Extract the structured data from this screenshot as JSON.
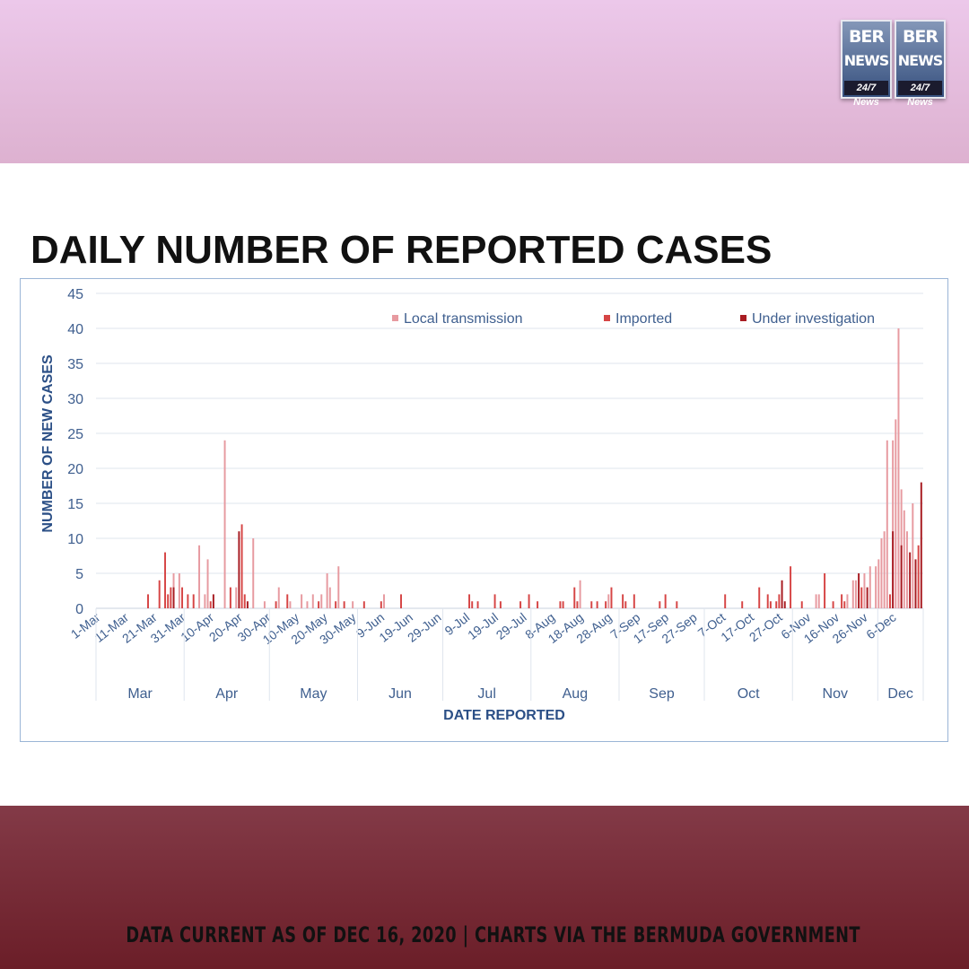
{
  "header": {
    "logo": {
      "tiles": [
        {
          "line1": "BER",
          "line2": "NEWS",
          "line3": "24/7 News"
        },
        {
          "line1": "BER",
          "line2": "NEWS",
          "line3": "24/7 News"
        }
      ]
    }
  },
  "footer": {
    "text": "DATA CURRENT AS OF DEC 16, 2020 | CHARTS VIA THE BERMUDA GOVERNMENT"
  },
  "colors": {
    "top_band": "#e5bddd",
    "bottom_band": "#7a2c37",
    "local": "#e79aa0",
    "imported": "#d64545",
    "under_investigation": "#a81c22",
    "axis_text": "#3f5f8f",
    "gridline": "#dfe5ee"
  },
  "chart_data": {
    "type": "bar",
    "title": "DAILY NUMBER OF REPORTED CASES",
    "xlabel": "DATE REPORTED",
    "ylabel": "NUMBER OF NEW CASES",
    "ylim": [
      0,
      45
    ],
    "yticks": [
      0,
      5,
      10,
      15,
      20,
      25,
      30,
      35,
      40,
      45
    ],
    "grid": true,
    "legend_position": "top-right",
    "x_tick_labels": [
      "1-Mar",
      "11-Mar",
      "21-Mar",
      "31-Mar",
      "10-Apr",
      "20-Apr",
      "30-Apr",
      "10-May",
      "20-May",
      "30-May",
      "9-Jun",
      "19-Jun",
      "29-Jun",
      "9-Jul",
      "19-Jul",
      "29-Jul",
      "8-Aug",
      "18-Aug",
      "28-Aug",
      "7-Sep",
      "17-Sep",
      "27-Sep",
      "7-Oct",
      "17-Oct",
      "27-Oct",
      "6-Nov",
      "16-Nov",
      "26-Nov",
      "6-Dec"
    ],
    "months": [
      "Mar",
      "Apr",
      "May",
      "Jun",
      "Jul",
      "Aug",
      "Sep",
      "Oct",
      "Nov",
      "Dec"
    ],
    "date_range": [
      "1-Mar",
      "16-Dec"
    ],
    "series": [
      {
        "name": "Local transmission",
        "color": "#e79aa0",
        "points": [
          [
            "28-Mar",
            5
          ],
          [
            "30-Mar",
            5
          ],
          [
            "6-Apr",
            9
          ],
          [
            "9-Apr",
            7
          ],
          [
            "8-Apr",
            2
          ],
          [
            "15-Apr",
            24
          ],
          [
            "19-Apr",
            3
          ],
          [
            "25-Apr",
            10
          ],
          [
            "29-Apr",
            1
          ],
          [
            "4-May",
            3
          ],
          [
            "8-May",
            1
          ],
          [
            "12-May",
            2
          ],
          [
            "14-May",
            1
          ],
          [
            "16-May",
            2
          ],
          [
            "19-May",
            2
          ],
          [
            "21-May",
            5
          ],
          [
            "22-May",
            3
          ],
          [
            "25-May",
            6
          ],
          [
            "30-May",
            1
          ],
          [
            "10-Jun",
            2
          ],
          [
            "18-Aug",
            4
          ],
          [
            "28-Aug",
            2
          ],
          [
            "9-Nov",
            2
          ],
          [
            "10-Nov",
            2
          ],
          [
            "20-Nov",
            2
          ],
          [
            "22-Nov",
            4
          ],
          [
            "23-Nov",
            4
          ],
          [
            "26-Nov",
            5
          ],
          [
            "28-Nov",
            6
          ],
          [
            "30-Nov",
            6
          ],
          [
            "1-Dec",
            7
          ],
          [
            "2-Dec",
            10
          ],
          [
            "3-Dec",
            11
          ],
          [
            "4-Dec",
            24
          ],
          [
            "6-Dec",
            24
          ],
          [
            "7-Dec",
            27
          ],
          [
            "8-Dec",
            40
          ],
          [
            "9-Dec",
            17
          ],
          [
            "10-Dec",
            14
          ],
          [
            "11-Dec",
            11
          ],
          [
            "13-Dec",
            15
          ]
        ]
      },
      {
        "name": "Imported",
        "color": "#d64545",
        "points": [
          [
            "19-Mar",
            2
          ],
          [
            "23-Mar",
            4
          ],
          [
            "25-Mar",
            8
          ],
          [
            "26-Mar",
            2
          ],
          [
            "27-Mar",
            3
          ],
          [
            "31-Mar",
            3
          ],
          [
            "2-Apr",
            2
          ],
          [
            "4-Apr",
            2
          ],
          [
            "10-Apr",
            1
          ],
          [
            "17-Apr",
            3
          ],
          [
            "21-Apr",
            12
          ],
          [
            "22-Apr",
            2
          ],
          [
            "3-May",
            1
          ],
          [
            "7-May",
            2
          ],
          [
            "18-May",
            1
          ],
          [
            "24-May",
            1
          ],
          [
            "27-May",
            1
          ],
          [
            "3-Jun",
            1
          ],
          [
            "9-Jun",
            1
          ],
          [
            "16-Jun",
            2
          ],
          [
            "10-Jul",
            2
          ],
          [
            "11-Jul",
            1
          ],
          [
            "13-Jul",
            1
          ],
          [
            "19-Jul",
            2
          ],
          [
            "21-Jul",
            1
          ],
          [
            "28-Jul",
            1
          ],
          [
            "31-Jul",
            2
          ],
          [
            "3-Aug",
            1
          ],
          [
            "11-Aug",
            1
          ],
          [
            "12-Aug",
            1
          ],
          [
            "16-Aug",
            3
          ],
          [
            "17-Aug",
            1
          ],
          [
            "22-Aug",
            1
          ],
          [
            "24-Aug",
            1
          ],
          [
            "27-Aug",
            1
          ],
          [
            "29-Aug",
            3
          ],
          [
            "2-Sep",
            2
          ],
          [
            "3-Sep",
            1
          ],
          [
            "6-Sep",
            2
          ],
          [
            "15-Sep",
            1
          ],
          [
            "17-Sep",
            2
          ],
          [
            "21-Sep",
            1
          ],
          [
            "8-Oct",
            2
          ],
          [
            "14-Oct",
            1
          ],
          [
            "20-Oct",
            3
          ],
          [
            "23-Oct",
            2
          ],
          [
            "24-Oct",
            1
          ],
          [
            "26-Oct",
            1
          ],
          [
            "27-Oct",
            2
          ],
          [
            "31-Oct",
            6
          ],
          [
            "4-Nov",
            1
          ],
          [
            "12-Nov",
            5
          ],
          [
            "15-Nov",
            1
          ],
          [
            "18-Nov",
            2
          ],
          [
            "19-Nov",
            1
          ],
          [
            "25-Nov",
            3
          ],
          [
            "5-Dec",
            2
          ],
          [
            "15-Dec",
            9
          ]
        ]
      },
      {
        "name": "Under investigation",
        "color": "#a81c22",
        "points": [
          [
            "28-Mar",
            3
          ],
          [
            "11-Apr",
            2
          ],
          [
            "20-Apr",
            11
          ],
          [
            "23-Apr",
            1
          ],
          [
            "28-Oct",
            4
          ],
          [
            "29-Oct",
            1
          ],
          [
            "24-Nov",
            5
          ],
          [
            "27-Nov",
            3
          ],
          [
            "6-Dec",
            11
          ],
          [
            "9-Dec",
            9
          ],
          [
            "12-Dec",
            8
          ],
          [
            "14-Dec",
            7
          ],
          [
            "16-Dec",
            18
          ]
        ]
      }
    ]
  }
}
